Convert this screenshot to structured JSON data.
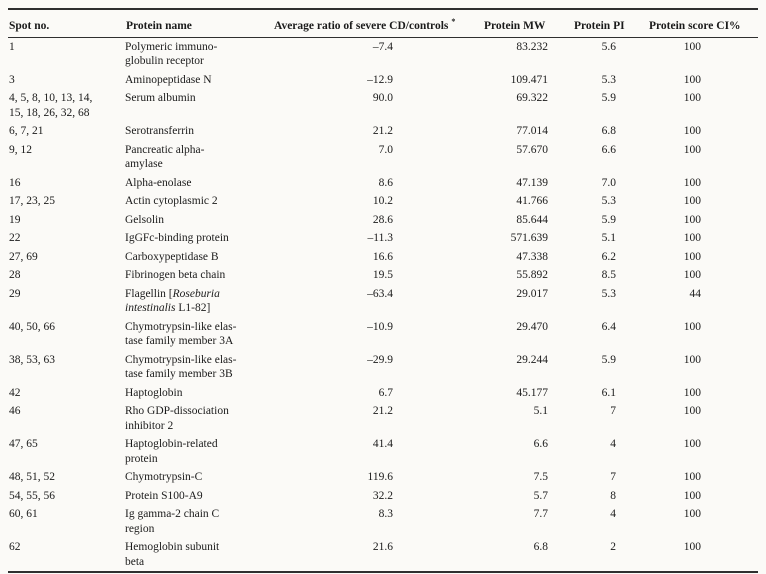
{
  "table": {
    "columns": [
      "Spot no.",
      "Protein name",
      "Average ratio of severe CD/controls",
      "Protein MW",
      "Protein PI",
      "Protein score CI%"
    ],
    "ratio_footnote_marker": "*",
    "rows": [
      {
        "spot": "1",
        "protein": [
          {
            "text": "Polymeric immuno-\nglobulin receptor"
          }
        ],
        "ratio": "–7.4",
        "mw": "83.232",
        "pi": "5.6",
        "score": "100"
      },
      {
        "spot": "3",
        "protein": [
          {
            "text": "Aminopeptidase N"
          }
        ],
        "ratio": "–12.9",
        "mw": "109.471",
        "pi": "5.3",
        "score": "100"
      },
      {
        "spot": "4, 5, 8, 10, 13, 14,\n15, 18, 26, 32, 68",
        "protein": [
          {
            "text": "Serum albumin"
          }
        ],
        "ratio": "90.0",
        "mw": "69.322",
        "pi": "5.9",
        "score": "100"
      },
      {
        "spot": "6, 7, 21",
        "protein": [
          {
            "text": "Serotransferrin"
          }
        ],
        "ratio": "21.2",
        "mw": "77.014",
        "pi": "6.8",
        "score": "100"
      },
      {
        "spot": "9, 12",
        "protein": [
          {
            "text": "Pancreatic alpha-\namylase"
          }
        ],
        "ratio": "7.0",
        "mw": "57.670",
        "pi": "6.6",
        "score": "100"
      },
      {
        "spot": "16",
        "protein": [
          {
            "text": "Alpha-enolase"
          }
        ],
        "ratio": "8.6",
        "mw": "47.139",
        "pi": "7.0",
        "score": "100"
      },
      {
        "spot": "17, 23, 25",
        "protein": [
          {
            "text": "Actin cytoplasmic 2"
          }
        ],
        "ratio": "10.2",
        "mw": "41.766",
        "pi": "5.3",
        "score": "100"
      },
      {
        "spot": "19",
        "protein": [
          {
            "text": "Gelsolin"
          }
        ],
        "ratio": "28.6",
        "mw": "85.644",
        "pi": "5.9",
        "score": "100"
      },
      {
        "spot": "22",
        "protein": [
          {
            "text": "IgGFc-binding protein"
          }
        ],
        "ratio": "–11.3",
        "mw": "571.639",
        "pi": "5.1",
        "score": "100"
      },
      {
        "spot": "27, 69",
        "protein": [
          {
            "text": "Carboxypeptidase B"
          }
        ],
        "ratio": "16.6",
        "mw": "47.338",
        "pi": "6.2",
        "score": "100"
      },
      {
        "spot": "28",
        "protein": [
          {
            "text": "Fibrinogen beta chain"
          }
        ],
        "ratio": "19.5",
        "mw": "55.892",
        "pi": "8.5",
        "score": "100"
      },
      {
        "spot": "29",
        "protein": [
          {
            "text": "Flagellin ["
          },
          {
            "text": "Roseburia\nintestinalis",
            "italic": true
          },
          {
            "text": " L1-82]"
          }
        ],
        "ratio": "–63.4",
        "mw": "29.017",
        "pi": "5.3",
        "score": "44"
      },
      {
        "spot": "40, 50, 66",
        "protein": [
          {
            "text": "Chymotrypsin-like elas-\ntase family member 3A"
          }
        ],
        "ratio": "–10.9",
        "mw": "29.470",
        "pi": "6.4",
        "score": "100"
      },
      {
        "spot": "38, 53, 63",
        "protein": [
          {
            "text": "Chymotrypsin-like elas-\ntase family member 3B"
          }
        ],
        "ratio": "–29.9",
        "mw": "29.244",
        "pi": "5.9",
        "score": "100"
      },
      {
        "spot": "42",
        "protein": [
          {
            "text": "Haptoglobin"
          }
        ],
        "ratio": "6.7",
        "mw": "45.177",
        "pi": "6.1",
        "score": "100"
      },
      {
        "spot": "46",
        "protein": [
          {
            "text": "Rho GDP-dissociation\ninhibitor 2"
          }
        ],
        "ratio": "21.2",
        "mw": "5.1",
        "pi": "7",
        "score": "100"
      },
      {
        "spot": "47, 65",
        "protein": [
          {
            "text": "Haptoglobin-related\nprotein"
          }
        ],
        "ratio": "41.4",
        "mw": "6.6",
        "pi": "4",
        "score": "100"
      },
      {
        "spot": "48, 51, 52",
        "protein": [
          {
            "text": "Chymotrypsin-C"
          }
        ],
        "ratio": "119.6",
        "mw": "7.5",
        "pi": "7",
        "score": "100"
      },
      {
        "spot": "54, 55, 56",
        "protein": [
          {
            "text": "Protein S100-A9"
          }
        ],
        "ratio": "32.2",
        "mw": "5.7",
        "pi": "8",
        "score": "100"
      },
      {
        "spot": "60, 61",
        "protein": [
          {
            "text": "Ig gamma-2 chain C\nregion"
          }
        ],
        "ratio": "8.3",
        "mw": "7.7",
        "pi": "4",
        "score": "100"
      },
      {
        "spot": "62",
        "protein": [
          {
            "text": "Hemoglobin subunit\nbeta"
          }
        ],
        "ratio": "21.6",
        "mw": "6.8",
        "pi": "2",
        "score": "100"
      }
    ]
  }
}
